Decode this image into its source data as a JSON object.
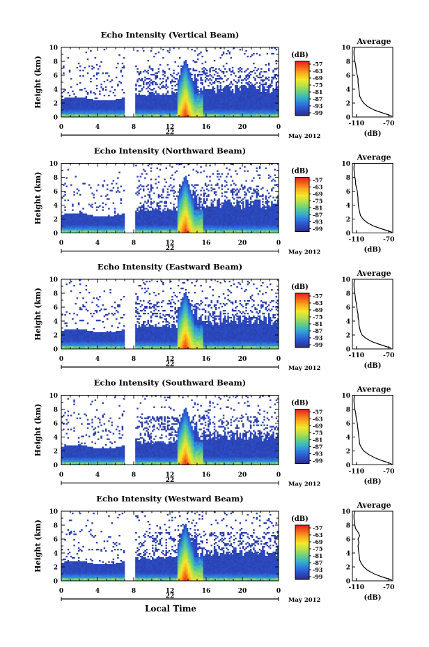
{
  "page": {
    "xaxis_title": "Local Time"
  },
  "colorbar": {
    "unit_label": "(dB)",
    "ticks": [
      "-57",
      "-63",
      "-69",
      "-75",
      "-81",
      "-87",
      "-93",
      "-99"
    ],
    "colors": [
      "#e8251e",
      "#f36b1a",
      "#f9b11f",
      "#f3e92b",
      "#b8e04b",
      "#6fd27a",
      "#3ab4c4",
      "#2f7ee0",
      "#2b4fc9",
      "#2b2f8c"
    ]
  },
  "chart_data": [
    {
      "type": "heatmap",
      "title": "Echo Intensity (Vertical Beam)",
      "ylabel": "Height (km)",
      "ylim": [
        0,
        10
      ],
      "yticks": [
        "0",
        "2",
        "4",
        "6",
        "8",
        "10"
      ],
      "xlim": [
        0,
        24
      ],
      "xticks": [
        "0",
        "4",
        "8",
        "12",
        "16",
        "20",
        "0"
      ],
      "date_center": "22",
      "month_label": "May 2012",
      "average": {
        "title": "Average",
        "xlabel": "(dB)",
        "xticks": [
          "-110",
          "-70"
        ],
        "yticks": [
          "0",
          "2",
          "4",
          "6",
          "8",
          "10"
        ],
        "xlim": [
          -115,
          -65
        ],
        "ylim": [
          0,
          10
        ],
        "profile": [
          [
            -66,
            0.1
          ],
          [
            -70,
            0.3
          ],
          [
            -78,
            0.6
          ],
          [
            -88,
            1.0
          ],
          [
            -96,
            1.5
          ],
          [
            -101,
            2.0
          ],
          [
            -104,
            2.5
          ],
          [
            -106,
            3.0
          ],
          [
            -106.5,
            3.5
          ],
          [
            -107,
            4.0
          ],
          [
            -107.5,
            4.5
          ],
          [
            -108,
            5.0
          ],
          [
            -108,
            5.5
          ],
          [
            -109,
            6.0
          ],
          [
            -110,
            6.5
          ],
          [
            -110.5,
            7.0
          ],
          [
            -111,
            7.5
          ],
          [
            -112,
            8.0
          ],
          [
            -112.5,
            8.5
          ],
          [
            -113,
            9.0
          ],
          [
            -113,
            9.5
          ],
          [
            -112,
            10.0
          ]
        ]
      }
    },
    {
      "type": "heatmap",
      "title": "Echo Intensity (Northward Beam)",
      "ylabel": "Height (km)",
      "ylim": [
        0,
        10
      ],
      "yticks": [
        "0",
        "2",
        "4",
        "6",
        "8",
        "10"
      ],
      "xlim": [
        0,
        24
      ],
      "xticks": [
        "0",
        "4",
        "8",
        "12",
        "16",
        "20",
        "0"
      ],
      "date_center": "22",
      "month_label": "May 2012",
      "average": {
        "title": "Average",
        "xlabel": "(dB)",
        "xticks": [
          "-110",
          "-70"
        ],
        "yticks": [
          "0",
          "2",
          "4",
          "6",
          "8",
          "10"
        ],
        "xlim": [
          -115,
          -65
        ],
        "ylim": [
          0,
          10
        ],
        "profile": [
          [
            -66,
            0.1
          ],
          [
            -71,
            0.3
          ],
          [
            -79,
            0.6
          ],
          [
            -89,
            1.0
          ],
          [
            -97,
            1.5
          ],
          [
            -102,
            2.0
          ],
          [
            -105,
            2.5
          ],
          [
            -106,
            3.0
          ],
          [
            -107,
            3.5
          ],
          [
            -107.5,
            4.0
          ],
          [
            -108,
            4.5
          ],
          [
            -108,
            5.0
          ],
          [
            -108.5,
            5.5
          ],
          [
            -109,
            6.0
          ],
          [
            -110,
            6.5
          ],
          [
            -111,
            7.0
          ],
          [
            -111,
            7.5
          ],
          [
            -112,
            8.0
          ],
          [
            -112.5,
            8.5
          ],
          [
            -113,
            9.0
          ],
          [
            -113,
            9.5
          ],
          [
            -112.5,
            10.0
          ]
        ]
      }
    },
    {
      "type": "heatmap",
      "title": "Echo Intensity (Eastward Beam)",
      "ylabel": "Height (km)",
      "ylim": [
        0,
        10
      ],
      "yticks": [
        "0",
        "2",
        "4",
        "6",
        "8",
        "10"
      ],
      "xlim": [
        0,
        24
      ],
      "xticks": [
        "0",
        "4",
        "8",
        "12",
        "16",
        "20",
        "0"
      ],
      "date_center": "22",
      "month_label": "May 2012",
      "average": {
        "title": "Average",
        "xlabel": "(dB)",
        "xticks": [
          "-110",
          "-70"
        ],
        "yticks": [
          "0",
          "2",
          "4",
          "6",
          "8",
          "10"
        ],
        "xlim": [
          -115,
          -65
        ],
        "ylim": [
          0,
          10
        ],
        "profile": [
          [
            -67,
            0.1
          ],
          [
            -72,
            0.3
          ],
          [
            -80,
            0.6
          ],
          [
            -90,
            1.0
          ],
          [
            -98,
            1.5
          ],
          [
            -103,
            2.0
          ],
          [
            -105,
            2.5
          ],
          [
            -106,
            3.0
          ],
          [
            -107,
            3.5
          ],
          [
            -107,
            4.0
          ],
          [
            -108,
            4.5
          ],
          [
            -108,
            5.0
          ],
          [
            -109,
            5.5
          ],
          [
            -109.5,
            6.0
          ],
          [
            -110,
            6.5
          ],
          [
            -111,
            7.0
          ],
          [
            -111.5,
            7.5
          ],
          [
            -112,
            8.0
          ],
          [
            -112.5,
            8.5
          ],
          [
            -113,
            9.0
          ],
          [
            -113,
            9.5
          ],
          [
            -112,
            10.0
          ]
        ]
      }
    },
    {
      "type": "heatmap",
      "title": "Echo Intensity (Southward Beam)",
      "ylabel": "Height (km)",
      "ylim": [
        0,
        10
      ],
      "yticks": [
        "0",
        "2",
        "4",
        "6",
        "8",
        "10"
      ],
      "xlim": [
        0,
        24
      ],
      "xticks": [
        "0",
        "4",
        "8",
        "12",
        "16",
        "20",
        "0"
      ],
      "date_center": "22",
      "month_label": "May 2012",
      "average": {
        "title": "Average",
        "xlabel": "(dB)",
        "xticks": [
          "-110",
          "-70"
        ],
        "yticks": [
          "0",
          "2",
          "4",
          "6",
          "8",
          "10"
        ],
        "xlim": [
          -115,
          -65
        ],
        "ylim": [
          0,
          10
        ],
        "profile": [
          [
            -66,
            0.1
          ],
          [
            -70,
            0.3
          ],
          [
            -78,
            0.6
          ],
          [
            -87,
            1.0
          ],
          [
            -95,
            1.5
          ],
          [
            -101,
            2.0
          ],
          [
            -104,
            2.5
          ],
          [
            -106,
            3.0
          ],
          [
            -106.5,
            3.5
          ],
          [
            -107,
            4.0
          ],
          [
            -107.5,
            4.5
          ],
          [
            -108,
            5.0
          ],
          [
            -108.5,
            5.5
          ],
          [
            -109,
            6.0
          ],
          [
            -110,
            6.5
          ],
          [
            -110.5,
            7.0
          ],
          [
            -111,
            7.5
          ],
          [
            -112,
            8.0
          ],
          [
            -112.5,
            8.5
          ],
          [
            -113,
            9.0
          ],
          [
            -113,
            9.5
          ],
          [
            -112.5,
            10.0
          ]
        ]
      }
    },
    {
      "type": "heatmap",
      "title": "Echo Intensity (Westward Beam)",
      "ylabel": "Height (km)",
      "ylim": [
        0,
        10
      ],
      "yticks": [
        "0",
        "2",
        "4",
        "6",
        "8",
        "10"
      ],
      "xlim": [
        0,
        24
      ],
      "xticks": [
        "0",
        "4",
        "8",
        "12",
        "16",
        "20",
        "0"
      ],
      "date_center": "22",
      "month_label": "May 2012",
      "average": {
        "title": "Average",
        "xlabel": "(dB)",
        "xticks": [
          "-110",
          "-70"
        ],
        "yticks": [
          "0",
          "2",
          "4",
          "6",
          "8",
          "10"
        ],
        "xlim": [
          -115,
          -65
        ],
        "ylim": [
          0,
          10
        ],
        "profile": [
          [
            -66,
            0.1
          ],
          [
            -71,
            0.3
          ],
          [
            -79,
            0.6
          ],
          [
            -88,
            1.0
          ],
          [
            -96,
            1.5
          ],
          [
            -101,
            2.0
          ],
          [
            -104,
            2.5
          ],
          [
            -106,
            3.0
          ],
          [
            -106.5,
            3.5
          ],
          [
            -107,
            4.0
          ],
          [
            -107.5,
            4.5
          ],
          [
            -108,
            5.0
          ],
          [
            -107,
            5.5
          ],
          [
            -108,
            6.0
          ],
          [
            -106,
            6.5
          ],
          [
            -108,
            7.0
          ],
          [
            -111,
            7.5
          ],
          [
            -112,
            8.0
          ],
          [
            -112.5,
            8.5
          ],
          [
            -113,
            9.0
          ],
          [
            -113,
            9.5
          ],
          [
            -112,
            10.0
          ]
        ]
      }
    }
  ]
}
